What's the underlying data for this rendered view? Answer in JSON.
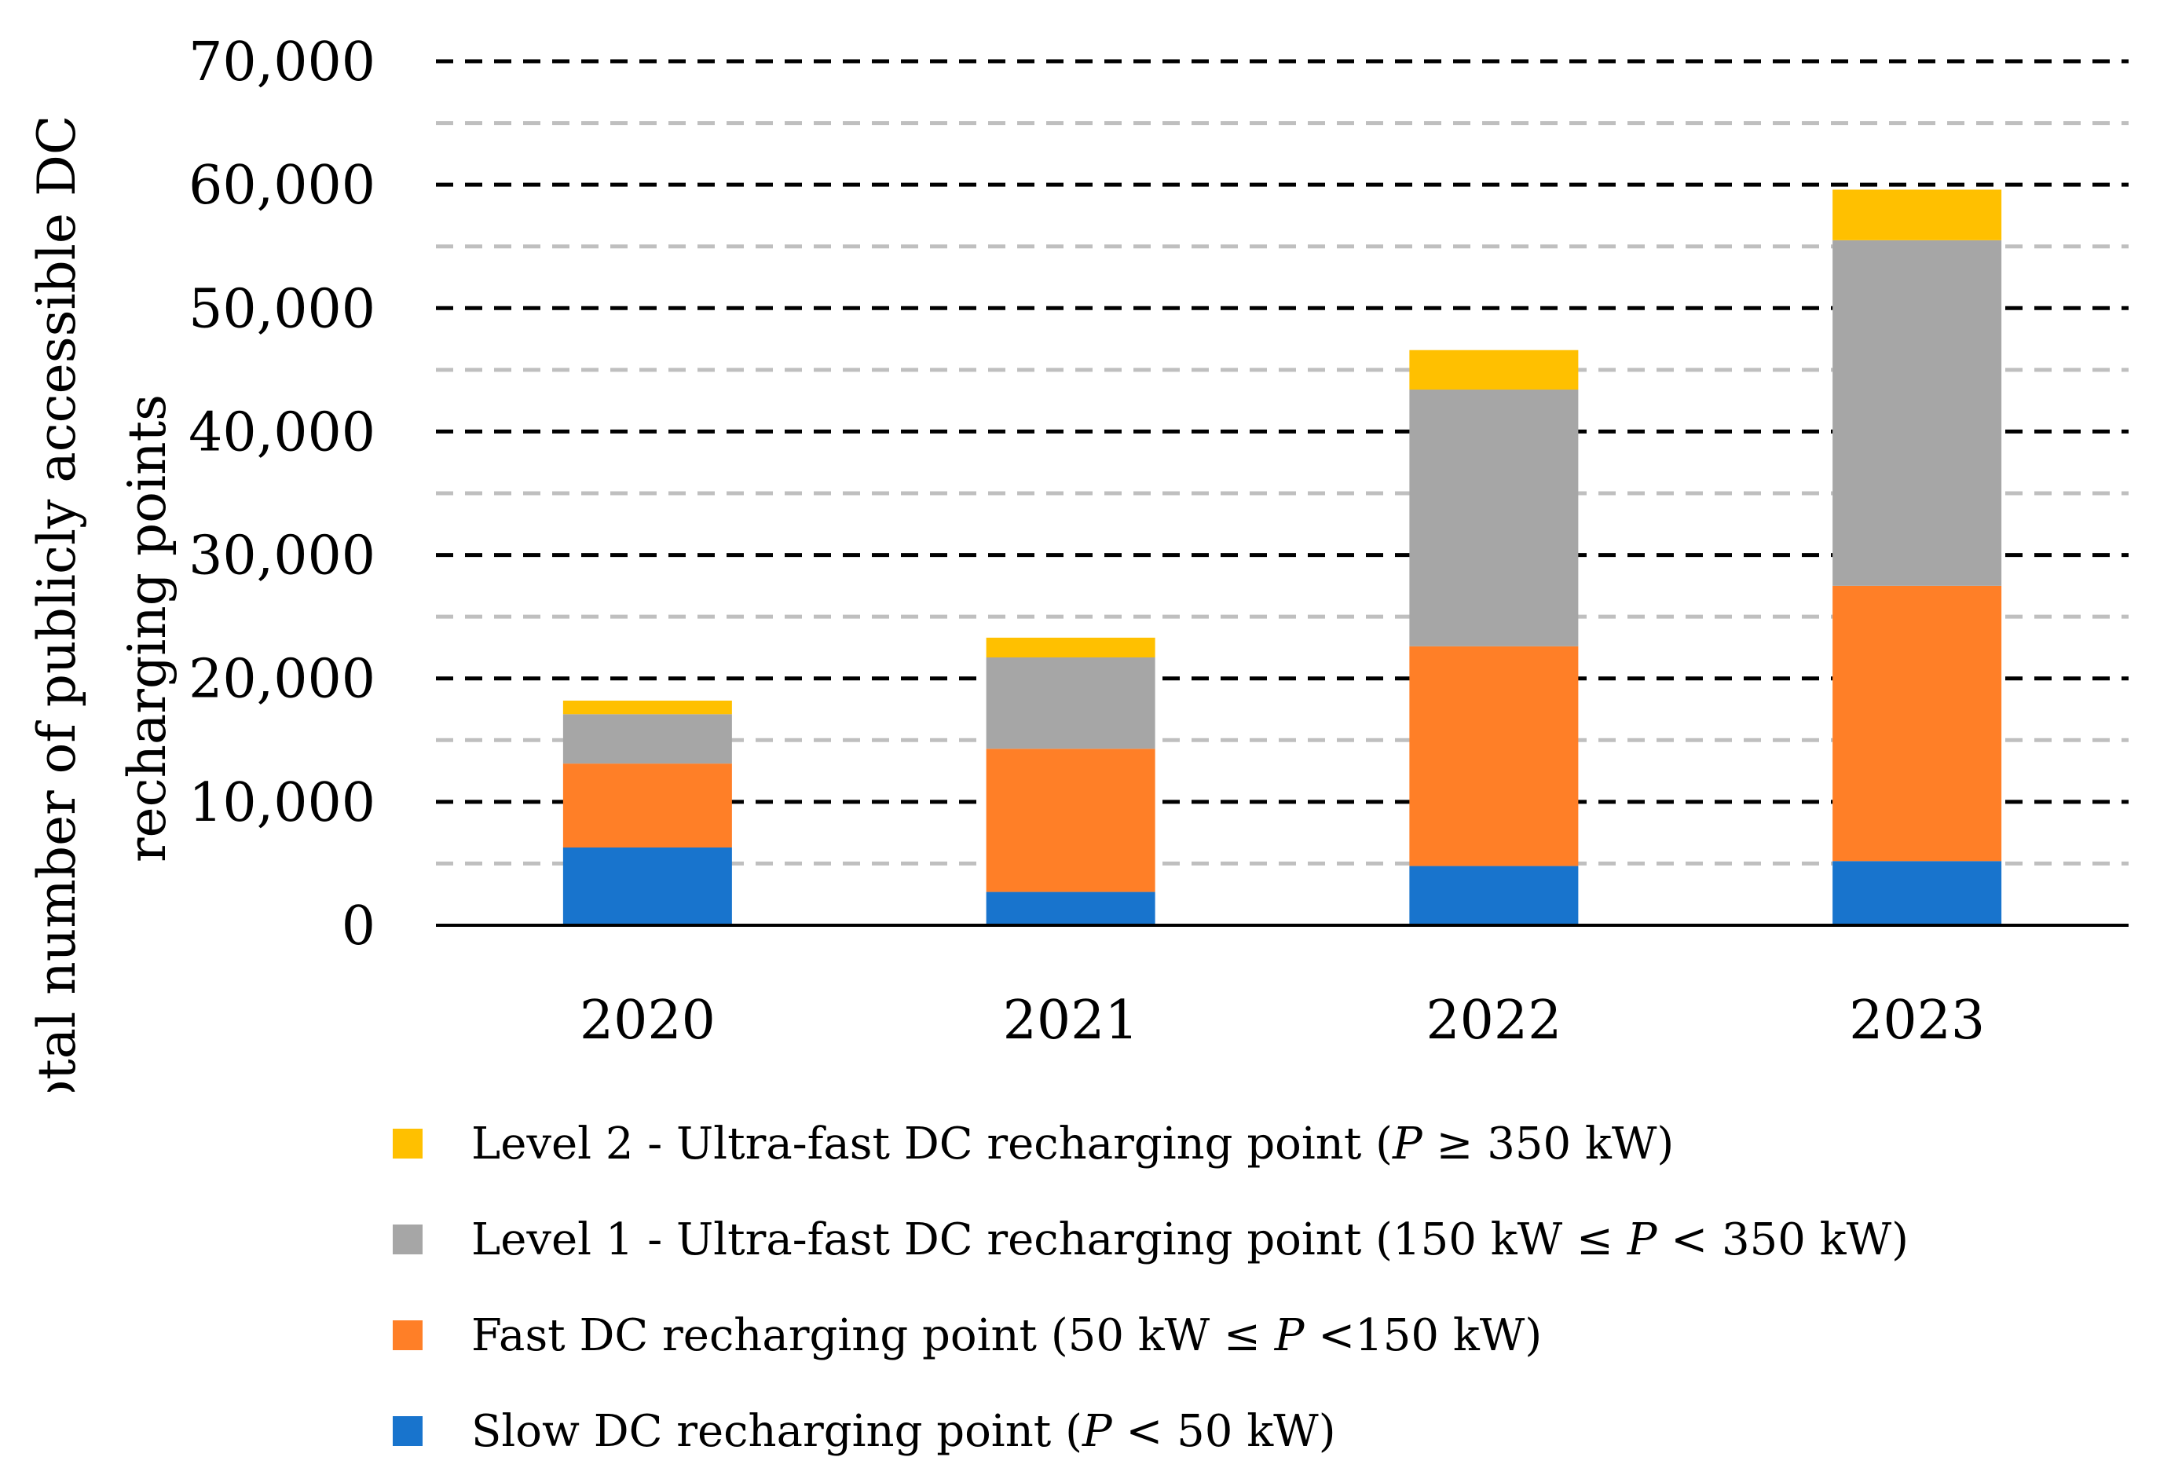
{
  "chart_data": {
    "type": "bar",
    "stacked": true,
    "title": "",
    "xlabel": "",
    "ylabel_lines": [
      "Total number of publicly accessible DC",
      "recharging points"
    ],
    "categories": [
      "2020",
      "2021",
      "2022",
      "2023"
    ],
    "ylim": [
      0,
      70000
    ],
    "yticks": [
      0,
      10000,
      20000,
      30000,
      40000,
      50000,
      60000,
      70000
    ],
    "ytick_labels": [
      "0",
      "10,000",
      "20,000",
      "30,000",
      "40,000",
      "50,000",
      "60,000",
      "70,000"
    ],
    "grid": {
      "major": "dashed-black",
      "minor": "dashed-gray",
      "minor_step": 5000
    },
    "legend_position": "bottom",
    "series": [
      {
        "name": "Slow DC recharging point (P < 50 kW)",
        "color": "#1874CD",
        "values": [
          6300,
          2700,
          4800,
          5200
        ]
      },
      {
        "name": "Fast DC recharging point (50 kW ≤ P <150 kW)",
        "color": "#FF7F27",
        "values": [
          6800,
          11600,
          17800,
          22300
        ]
      },
      {
        "name": "Level 1 - Ultra-fast DC recharging point (150 kW ≤ P < 350 kW)",
        "color": "#A6A6A6",
        "values": [
          4000,
          7400,
          20800,
          28000
        ]
      },
      {
        "name": "Level 2 - Ultra-fast DC recharging point (P ≥ 350 kW)",
        "color": "#FFC000",
        "values": [
          1100,
          1600,
          3200,
          4100
        ]
      }
    ]
  },
  "legend": [
    {
      "pre": "Level 2 - Ultra-fast DC recharging point (",
      "var": "P",
      "post": " ≥ 350 kW)",
      "color": "#FFC000"
    },
    {
      "pre": "Level 1 - Ultra-fast DC recharging point (150 kW ≤ ",
      "var": "P",
      "post": " < 350 kW)",
      "color": "#A6A6A6"
    },
    {
      "pre": "Fast DC recharging point (50 kW ≤ ",
      "var": "P",
      "post": " <150 kW)",
      "color": "#FF7F27"
    },
    {
      "pre": "Slow DC recharging point (",
      "var": "P",
      "post": " < 50 kW)",
      "color": "#1874CD"
    }
  ]
}
